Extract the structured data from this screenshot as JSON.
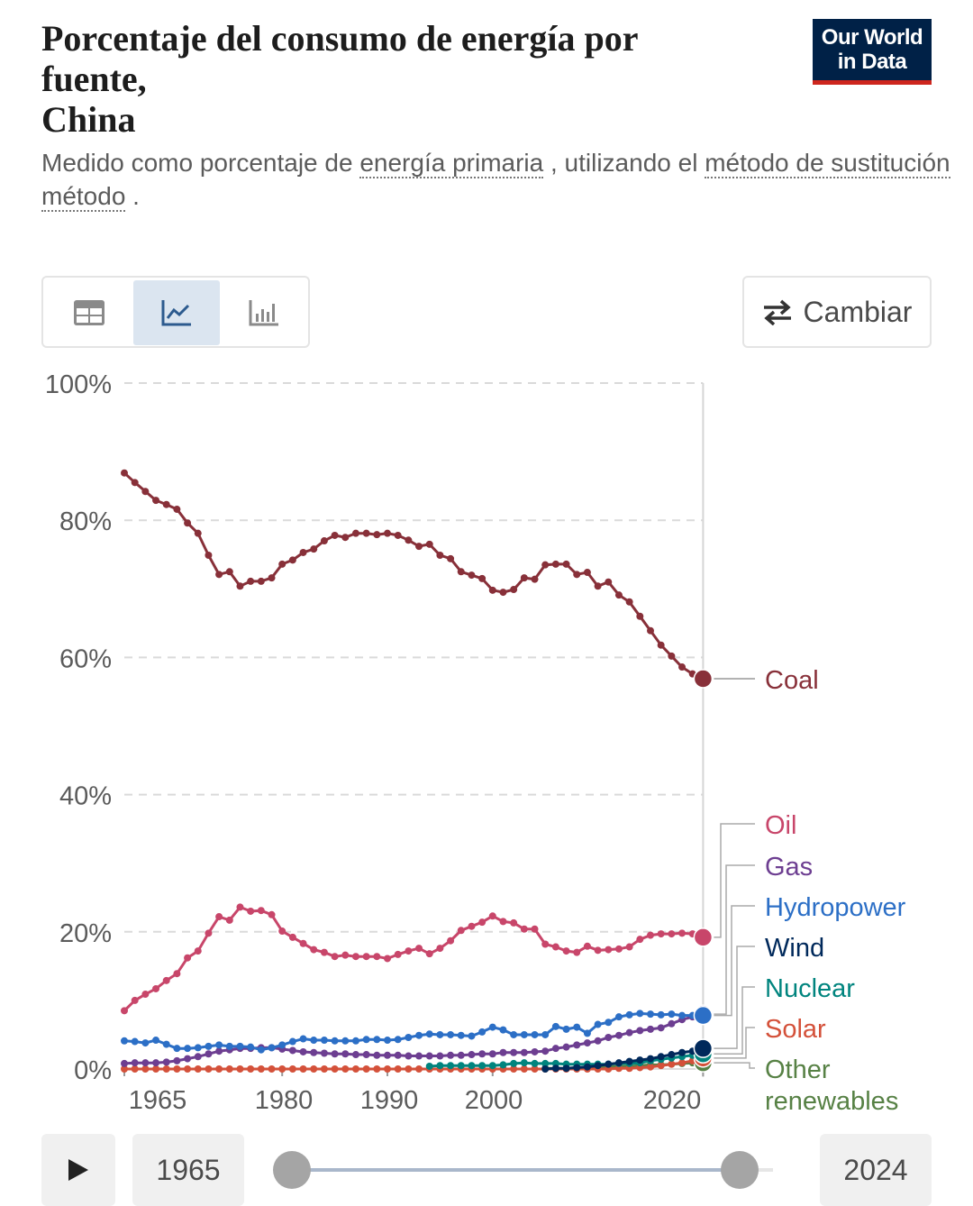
{
  "header": {
    "title": "Porcentaje del consumo de energía por fuente, China",
    "title_lines": [
      "Porcentaje del consumo de energía por",
      "fuente,",
      "China"
    ],
    "subtitle_parts": [
      "Medido como porcentaje de ",
      "energía primaria",
      " , utilizando el ",
      "método de sustitución",
      "método",
      " ."
    ],
    "logo": [
      "Our World",
      "in Data"
    ]
  },
  "toolbar": {
    "tabs": [
      {
        "name": "table",
        "icon": "table-icon",
        "active": false
      },
      {
        "name": "chart",
        "icon": "line-chart-icon",
        "active": true
      },
      {
        "name": "bar",
        "icon": "bar-chart-icon",
        "active": false
      }
    ],
    "switch_label": "Cambiar",
    "switch_icon": "swap-arrows-icon"
  },
  "timeline": {
    "start_year": "1965",
    "end_year": "2024",
    "play_icon": "play-icon"
  },
  "chart_data": {
    "type": "line",
    "title": "Porcentaje del consumo de energía por fuente, China",
    "ylabel": "",
    "ylim": [
      0,
      100
    ],
    "y_ticks": [
      "0%",
      "20%",
      "40%",
      "60%",
      "80%",
      "100%"
    ],
    "y_tick_values": [
      0,
      20,
      40,
      60,
      80,
      100
    ],
    "x_ticks": [
      "1965",
      "1980",
      "1990",
      "2000",
      "2020"
    ],
    "x_tick_values": [
      1965,
      1980,
      1990,
      2000,
      2020
    ],
    "x_start": 1965,
    "grid": true,
    "legend_placement": "right",
    "series": [
      {
        "name": "Coal",
        "color": "#883039",
        "values": [
          86.9,
          85.5,
          84.2,
          82.9,
          82.3,
          81.6,
          79.6,
          78.1,
          74.9,
          72.1,
          72.5,
          70.4,
          71.1,
          71.1,
          71.6,
          73.6,
          74.2,
          75.3,
          75.8,
          77.0,
          77.8,
          77.5,
          78.1,
          78.1,
          77.9,
          78.1,
          77.8,
          77.1,
          76.2,
          76.5,
          74.9,
          74.4,
          72.5,
          72.0,
          71.5,
          69.8,
          69.5,
          69.9,
          71.6,
          71.4,
          73.5,
          73.6,
          73.6,
          72.1,
          72.4,
          70.4,
          71.0,
          69.1,
          68.1,
          66.0,
          63.9,
          61.8,
          60.2,
          58.6,
          57.6,
          56.9
        ]
      },
      {
        "name": "Oil",
        "color": "#c8466a",
        "values": [
          8.5,
          10.0,
          10.9,
          11.7,
          12.9,
          13.9,
          16.2,
          17.2,
          19.8,
          22.2,
          21.7,
          23.6,
          23.0,
          23.1,
          22.5,
          20.1,
          19.2,
          18.3,
          17.4,
          17.0,
          16.4,
          16.6,
          16.4,
          16.4,
          16.4,
          16.1,
          16.7,
          17.2,
          17.6,
          16.8,
          17.6,
          18.7,
          20.2,
          20.8,
          21.4,
          22.3,
          21.5,
          21.3,
          20.4,
          20.4,
          18.2,
          17.8,
          17.2,
          17.0,
          17.9,
          17.3,
          17.4,
          17.5,
          17.8,
          18.9,
          19.5,
          19.7,
          19.7,
          19.8,
          19.7,
          19.2
        ]
      },
      {
        "name": "Gas",
        "color": "#6d3e91",
        "values": [
          0.8,
          0.9,
          0.9,
          0.9,
          1.0,
          1.2,
          1.5,
          1.8,
          2.2,
          2.6,
          2.8,
          3.0,
          3.0,
          3.1,
          3.1,
          2.9,
          2.7,
          2.5,
          2.4,
          2.3,
          2.2,
          2.2,
          2.1,
          2.1,
          2.0,
          2.0,
          2.0,
          1.9,
          1.9,
          1.9,
          1.9,
          2.0,
          2.0,
          2.1,
          2.2,
          2.2,
          2.4,
          2.4,
          2.4,
          2.5,
          2.6,
          3.0,
          3.2,
          3.5,
          3.8,
          4.1,
          4.6,
          4.9,
          5.3,
          5.6,
          5.8,
          6.0,
          6.6,
          7.2,
          7.6,
          8.0
        ]
      },
      {
        "name": "Hydropower",
        "color": "#2c6fc6",
        "values": [
          4.1,
          4.0,
          3.8,
          4.2,
          3.6,
          3.0,
          3.0,
          3.1,
          3.3,
          3.5,
          3.3,
          3.3,
          3.2,
          2.8,
          3.1,
          3.5,
          4.0,
          4.4,
          4.2,
          4.2,
          4.1,
          4.1,
          4.1,
          4.3,
          4.3,
          4.2,
          4.3,
          4.6,
          4.9,
          5.1,
          5.0,
          5.0,
          4.9,
          4.8,
          5.4,
          6.1,
          5.7,
          5.0,
          5.0,
          5.0,
          5.0,
          6.2,
          5.8,
          6.1,
          5.2,
          6.5,
          6.8,
          7.6,
          7.9,
          8.1,
          8.0,
          7.9,
          8.0,
          7.8,
          7.8,
          7.8
        ]
      },
      {
        "name": "Wind",
        "color": "#00295b",
        "values": [
          null,
          null,
          null,
          null,
          null,
          null,
          null,
          null,
          null,
          null,
          null,
          null,
          null,
          null,
          null,
          null,
          null,
          null,
          null,
          null,
          null,
          null,
          null,
          null,
          null,
          null,
          null,
          null,
          null,
          null,
          null,
          null,
          null,
          null,
          null,
          null,
          null,
          null,
          null,
          null,
          0.0,
          0.1,
          0.1,
          0.2,
          0.3,
          0.5,
          0.7,
          0.9,
          1.1,
          1.3,
          1.5,
          1.8,
          2.1,
          2.4,
          2.6,
          3.0
        ]
      },
      {
        "name": "Nuclear",
        "color": "#00847e",
        "values": [
          null,
          null,
          null,
          null,
          null,
          null,
          null,
          null,
          null,
          null,
          null,
          null,
          null,
          null,
          null,
          null,
          null,
          null,
          null,
          null,
          null,
          null,
          null,
          null,
          null,
          null,
          null,
          null,
          null,
          0.4,
          0.5,
          0.5,
          0.5,
          0.5,
          0.5,
          0.5,
          0.6,
          0.8,
          0.9,
          0.8,
          0.8,
          0.8,
          0.7,
          0.7,
          0.7,
          0.7,
          0.7,
          0.8,
          0.8,
          0.9,
          1.2,
          1.4,
          1.6,
          1.8,
          2.0,
          2.2
        ]
      },
      {
        "name": "Solar",
        "color": "#d4513a",
        "values": [
          0,
          0,
          0,
          0,
          0,
          0,
          0,
          0,
          0,
          0,
          0,
          0,
          0,
          0,
          0,
          0,
          0,
          0,
          0,
          0,
          0,
          0,
          0,
          0,
          0,
          0,
          0,
          0,
          0,
          0,
          0,
          0,
          0,
          0,
          0,
          0,
          0,
          0,
          0,
          0,
          0,
          0,
          0,
          0,
          0,
          0,
          0,
          0.1,
          0.1,
          0.2,
          0.3,
          0.5,
          0.7,
          0.9,
          1.2,
          1.6
        ]
      },
      {
        "name": "Other renewables",
        "color": "#578145",
        "label_lines": [
          "Other",
          "renewables"
        ],
        "values": [
          null,
          null,
          null,
          null,
          null,
          null,
          null,
          null,
          null,
          null,
          null,
          null,
          null,
          null,
          null,
          null,
          null,
          null,
          null,
          null,
          null,
          null,
          null,
          null,
          null,
          null,
          null,
          null,
          null,
          null,
          null,
          null,
          null,
          null,
          null,
          null,
          null,
          null,
          null,
          null,
          0.1,
          0.1,
          0.1,
          0.2,
          0.2,
          0.3,
          0.3,
          0.4,
          0.4,
          0.5,
          0.6,
          0.6,
          0.7,
          0.8,
          0.9,
          0.9
        ]
      }
    ]
  }
}
